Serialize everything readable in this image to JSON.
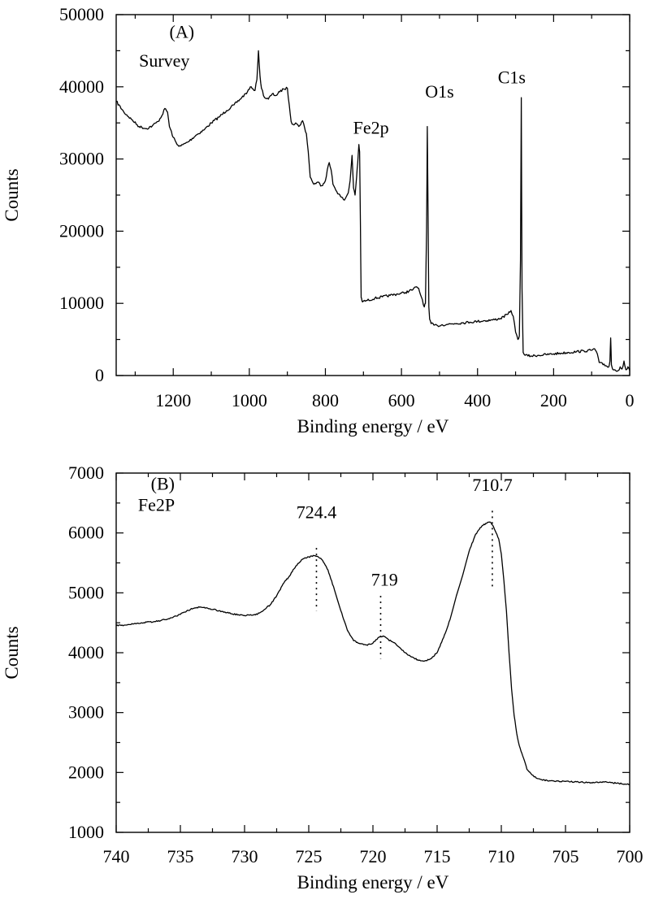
{
  "chart_data": [
    {
      "type": "line",
      "xlabel": "Binding energy / eV",
      "ylabel": "Counts",
      "xlim": [
        1350,
        0
      ],
      "ylim": [
        0,
        50000
      ],
      "x_reversed": true,
      "xticks": [
        1200,
        1000,
        800,
        600,
        400,
        200,
        0
      ],
      "yticks": [
        0,
        10000,
        20000,
        30000,
        40000,
        50000
      ],
      "line_color": "#000000",
      "annotations": [
        {
          "text": "(A)",
          "x": 1210,
          "y": 46800
        },
        {
          "text": "Survey",
          "x": 1290,
          "y": 42800
        },
        {
          "text": "Fe2p",
          "x": 680,
          "y": 33500
        },
        {
          "text": "O1s",
          "x": 500,
          "y": 38500
        },
        {
          "text": "C1s",
          "x": 310,
          "y": 40500
        }
      ],
      "series": [
        {
          "x": [
            1350,
            1330,
            1310,
            1290,
            1270,
            1255,
            1240,
            1230,
            1222,
            1215,
            1210,
            1200,
            1190,
            1180,
            1160,
            1140,
            1120,
            1100,
            1080,
            1060,
            1040,
            1020,
            1005,
            995,
            985,
            980,
            976,
            972,
            968,
            960,
            950,
            940,
            930,
            920,
            910,
            900,
            895,
            890,
            885,
            878,
            870,
            860,
            850,
            845,
            840,
            830,
            820,
            810,
            800,
            795,
            790,
            785,
            780,
            770,
            760,
            750,
            740,
            735,
            730,
            726,
            722,
            718,
            715,
            712,
            710,
            708,
            706,
            704,
            702,
            700,
            690,
            670,
            650,
            630,
            610,
            590,
            570,
            560,
            555,
            550,
            545,
            540,
            537,
            534,
            532,
            530,
            528,
            526,
            522,
            515,
            505,
            495,
            480,
            460,
            440,
            420,
            400,
            380,
            360,
            340,
            320,
            312,
            306,
            300,
            294,
            290,
            287,
            285,
            283,
            280,
            275,
            260,
            240,
            220,
            200,
            180,
            160,
            140,
            120,
            100,
            95,
            90,
            85,
            80,
            70,
            60,
            55,
            52,
            50,
            48,
            45,
            40,
            35,
            30,
            25,
            20,
            15,
            10,
            7,
            5,
            0
          ],
          "y": [
            38000,
            36500,
            35500,
            34500,
            34200,
            34600,
            35200,
            36000,
            37000,
            36500,
            34500,
            33000,
            32000,
            31800,
            32400,
            33300,
            34000,
            35000,
            35800,
            36700,
            37500,
            38500,
            39300,
            40000,
            39500,
            41000,
            45000,
            41500,
            39800,
            38500,
            38300,
            39000,
            38800,
            39300,
            39700,
            39800,
            37500,
            35200,
            34800,
            35000,
            34500,
            35300,
            33500,
            31000,
            27500,
            26500,
            26800,
            26300,
            27000,
            28500,
            29500,
            28500,
            26500,
            25500,
            24800,
            24300,
            25300,
            27000,
            30500,
            26000,
            25000,
            27500,
            29500,
            32000,
            31000,
            21000,
            10800,
            10400,
            10200,
            10300,
            10400,
            10700,
            10900,
            11100,
            11300,
            11500,
            11900,
            12300,
            12100,
            11200,
            10500,
            9500,
            10000,
            20000,
            34500,
            22000,
            9500,
            7800,
            7200,
            7000,
            6900,
            7000,
            7100,
            7200,
            7300,
            7400,
            7500,
            7600,
            7700,
            7900,
            8500,
            9000,
            8200,
            6000,
            5000,
            5500,
            16000,
            38500,
            12000,
            3200,
            2800,
            2700,
            2800,
            2900,
            3000,
            3100,
            3200,
            3300,
            3400,
            3500,
            3700,
            3500,
            3000,
            1800,
            1500,
            1300,
            1200,
            2000,
            5200,
            1500,
            900,
            800,
            600,
            700,
            1200,
            900,
            2000,
            800,
            900,
            1200,
            700
          ]
        }
      ]
    },
    {
      "type": "line",
      "xlabel": "Binding energy / eV",
      "ylabel": "Counts",
      "xlim": [
        740,
        700
      ],
      "ylim": [
        1000,
        7000
      ],
      "x_reversed": true,
      "xticks": [
        740,
        735,
        730,
        725,
        720,
        715,
        710,
        705,
        700
      ],
      "yticks": [
        1000,
        2000,
        3000,
        4000,
        5000,
        6000,
        7000
      ],
      "line_color": "#000000",
      "annotations": [
        {
          "text": "(B)",
          "x": 737.3,
          "y": 6720
        },
        {
          "text": "Fe2P",
          "x": 738.3,
          "y": 6370
        },
        {
          "text": "724.4",
          "x": 724.4,
          "y": 6250
        },
        {
          "text": "719",
          "x": 719.1,
          "y": 5120
        },
        {
          "text": "710.7",
          "x": 710.7,
          "y": 6700
        }
      ],
      "peak_markers": [
        {
          "x": 724.4,
          "y1": 5750,
          "y2": 4700
        },
        {
          "x": 719.4,
          "y1": 4950,
          "y2": 3900
        },
        {
          "x": 710.7,
          "y1": 6370,
          "y2": 5100
        }
      ],
      "series": [
        {
          "x": [
            740,
            739,
            738,
            737,
            736,
            735,
            734.5,
            734,
            733.5,
            733,
            732,
            731,
            730,
            729,
            728,
            727.5,
            727,
            726.5,
            726,
            725.5,
            725,
            724.5,
            724,
            723.5,
            723,
            722.5,
            722,
            721.5,
            721,
            720.5,
            720,
            719.6,
            719.2,
            718.8,
            718.4,
            718,
            717.5,
            717,
            716.5,
            716,
            715.5,
            715,
            714.5,
            714,
            713.5,
            713,
            712.5,
            712,
            711.5,
            711,
            710.8,
            710.6,
            710.4,
            710.2,
            710,
            709.8,
            709.6,
            709.4,
            709.2,
            709,
            708.8,
            708.6,
            708.4,
            708.2,
            708,
            707.6,
            707.2,
            706.8,
            706,
            705,
            704,
            703,
            702,
            701,
            700
          ],
          "y": [
            4450,
            4470,
            4500,
            4520,
            4560,
            4640,
            4700,
            4740,
            4760,
            4750,
            4700,
            4650,
            4620,
            4640,
            4800,
            4950,
            5150,
            5280,
            5450,
            5560,
            5600,
            5620,
            5560,
            5380,
            5050,
            4700,
            4380,
            4200,
            4150,
            4130,
            4160,
            4250,
            4280,
            4220,
            4170,
            4100,
            4000,
            3930,
            3880,
            3860,
            3900,
            4000,
            4250,
            4550,
            4950,
            5300,
            5700,
            5980,
            6120,
            6180,
            6170,
            6100,
            6000,
            5900,
            5650,
            5200,
            4700,
            4000,
            3400,
            2950,
            2650,
            2450,
            2320,
            2200,
            2050,
            1960,
            1900,
            1870,
            1860,
            1850,
            1840,
            1830,
            1840,
            1820,
            1800
          ]
        }
      ]
    }
  ]
}
